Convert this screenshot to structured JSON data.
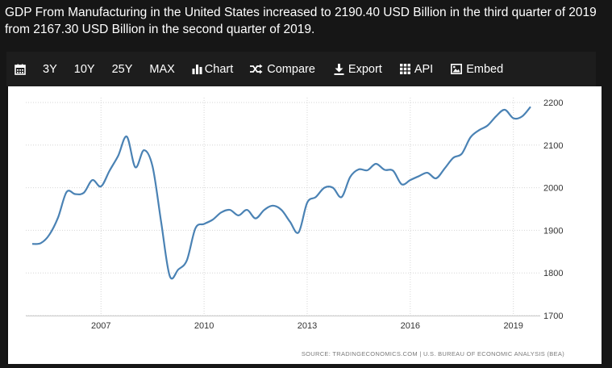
{
  "headline": "GDP From Manufacturing in the United States increased to 2190.40 USD Billion in the third quarter of 2019 from 2167.30 USD Billion in the second quarter of 2019.",
  "toolbar": {
    "calendar_icon": "calendar-icon",
    "btn_3y": "3Y",
    "btn_10y": "10Y",
    "btn_25y": "25Y",
    "btn_max": "MAX",
    "btn_chart": "Chart",
    "btn_compare": "Compare",
    "btn_export": "Export",
    "btn_api": "API",
    "btn_embed": "Embed"
  },
  "colors": {
    "line": "#4a82b4",
    "background": "#161616",
    "plot_bg": "#ffffff",
    "grid": "#d6d6d6",
    "axis_text": "#333333"
  },
  "chart_data": {
    "type": "line",
    "title": "GDP From Manufacturing in the United States",
    "ylabel": "USD Billion",
    "xlabel": "",
    "ylim": [
      1700,
      2200
    ],
    "yticks": [
      1700,
      1800,
      1900,
      2000,
      2100,
      2200
    ],
    "xticks": [
      2007,
      2010,
      2013,
      2016,
      2019
    ],
    "x": [
      2005.0,
      2005.25,
      2005.5,
      2005.75,
      2006.0,
      2006.25,
      2006.5,
      2006.75,
      2007.0,
      2007.25,
      2007.5,
      2007.75,
      2008.0,
      2008.25,
      2008.5,
      2008.75,
      2009.0,
      2009.25,
      2009.5,
      2009.75,
      2010.0,
      2010.25,
      2010.5,
      2010.75,
      2011.0,
      2011.25,
      2011.5,
      2011.75,
      2012.0,
      2012.25,
      2012.5,
      2012.75,
      2013.0,
      2013.25,
      2013.5,
      2013.75,
      2014.0,
      2014.25,
      2014.5,
      2014.75,
      2015.0,
      2015.25,
      2015.5,
      2015.75,
      2016.0,
      2016.25,
      2016.5,
      2016.75,
      2017.0,
      2017.25,
      2017.5,
      2017.75,
      2018.0,
      2018.25,
      2018.5,
      2018.75,
      2019.0,
      2019.25,
      2019.5
    ],
    "series": [
      {
        "name": "GDP From Manufacturing",
        "values": [
          1868,
          1870,
          1890,
          1930,
          1990,
          1985,
          1988,
          2018,
          2003,
          2040,
          2075,
          2120,
          2048,
          2088,
          2050,
          1920,
          1793,
          1808,
          1830,
          1905,
          1915,
          1925,
          1942,
          1948,
          1935,
          1948,
          1928,
          1948,
          1958,
          1948,
          1920,
          1895,
          1965,
          1978,
          2000,
          2000,
          1978,
          2025,
          2043,
          2041,
          2056,
          2042,
          2040,
          2008,
          2018,
          2027,
          2035,
          2022,
          2045,
          2070,
          2080,
          2118,
          2135,
          2146,
          2168,
          2183,
          2163,
          2167,
          2190
        ]
      }
    ],
    "source": "SOURCE: TRADINGECONOMICS.COM  |  U.S. BUREAU OF ECONOMIC ANALYSIS (BEA)"
  }
}
